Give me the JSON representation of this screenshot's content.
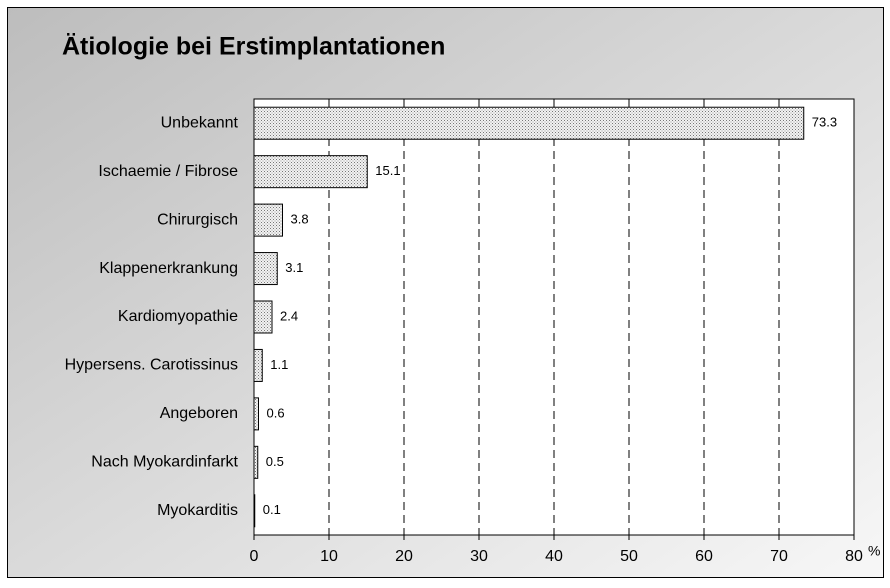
{
  "chart_data": {
    "type": "hbar",
    "title": "Ätiologie bei Erstimplantationen",
    "categories": [
      "Unbekannt",
      "Ischaemie / Fibrose",
      "Chirurgisch",
      "Klappenerkrankung",
      "Kardiomyopathie",
      "Hypersens. Carotissinus",
      "Angeboren",
      "Nach Myokardinfarkt",
      "Myokarditis"
    ],
    "values": [
      73.3,
      15.1,
      3.8,
      3.1,
      2.4,
      1.1,
      0.6,
      0.5,
      0.1
    ],
    "xlabel": "%",
    "xlim": [
      0,
      80
    ],
    "xticks": [
      0,
      10,
      20,
      30,
      40,
      50,
      60,
      70,
      80
    ],
    "grid": true
  }
}
